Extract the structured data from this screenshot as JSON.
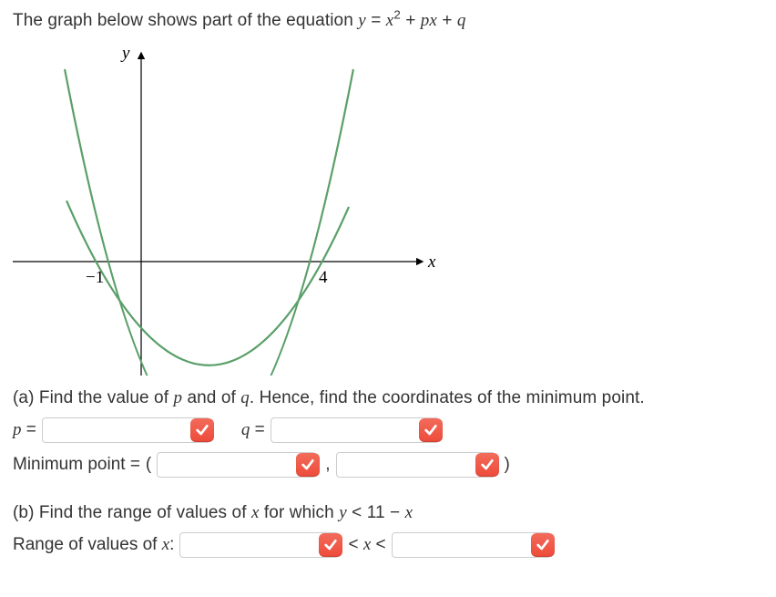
{
  "intro": {
    "prefix": "The graph below shows part of the equation ",
    "eq_y": "y",
    "eq_eq": " = ",
    "eq_x": "x",
    "eq_sq": "2",
    "eq_plus1": " + ",
    "eq_p": "p",
    "eq_x2": "x",
    "eq_plus2": " + ",
    "eq_q": "q"
  },
  "graph": {
    "y_label": "y",
    "x_label": "x",
    "tick_neg1": "−1",
    "tick_4": "4",
    "curve_color": "#5a9f68",
    "axis_color": "#000000",
    "roots": [
      -1,
      4
    ],
    "coef_a": 1
  },
  "partA": {
    "prompt_pre": "(a) Find the value of ",
    "prompt_p": "p",
    "prompt_mid": " and of ",
    "prompt_q": "q",
    "prompt_post": ". Hence, find the coordinates of the minimum point.",
    "p_label_var": "p",
    "q_label_var": "q",
    "eq_sign": " = ",
    "p_value": "",
    "q_value": "",
    "min_label": "Minimum point = ",
    "min_open": "(",
    "min_comma": ",",
    "min_close": ")",
    "min_x": "",
    "min_y": ""
  },
  "partB": {
    "prompt_pre": "(b) Find the range of values of ",
    "prompt_x": "x",
    "prompt_mid": " for which ",
    "ineq_y": "y",
    "ineq_lt": " < ",
    "ineq_rhs_num": "11",
    "ineq_minus": " − ",
    "ineq_x": "x",
    "range_label_pre": "Range of values of ",
    "range_label_x": "x",
    "range_label_post": ":",
    "lt_x_lt_pre": "< ",
    "lt_x_var": "x",
    "lt_x_lt_post": " <",
    "low": "",
    "high": ""
  },
  "style": {
    "badge_bg": "#f05a4b",
    "input_border": "#cccccc",
    "text_color": "#333333",
    "font_size_body": 19
  }
}
